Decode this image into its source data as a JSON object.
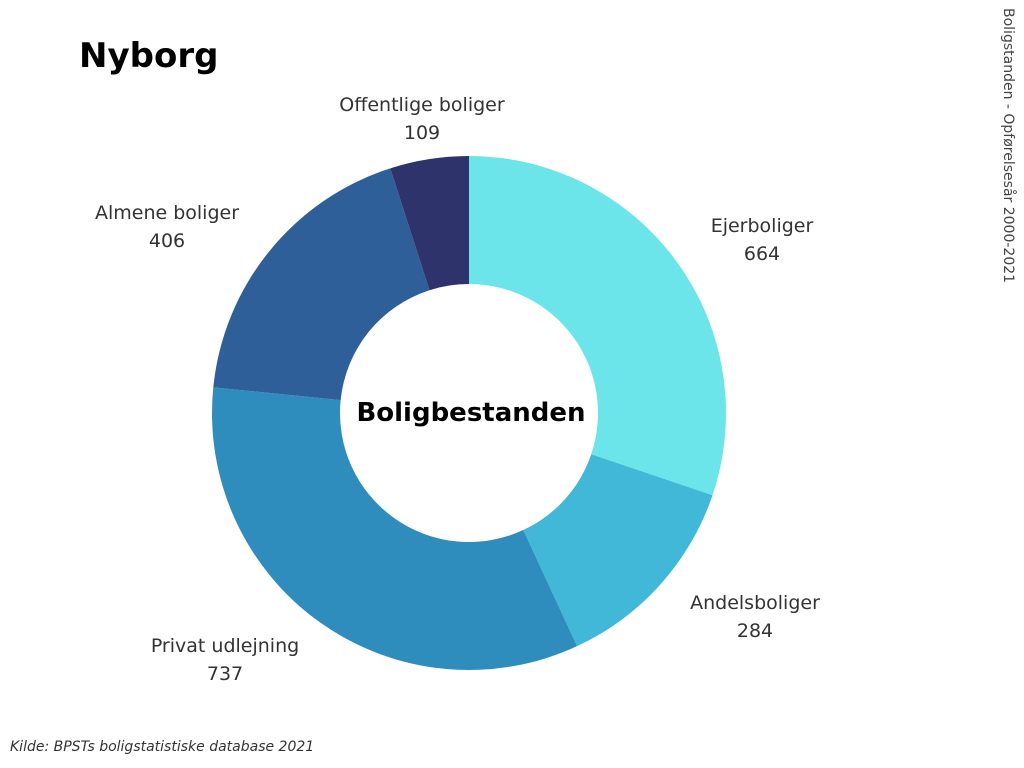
{
  "page": {
    "title": "Nyborg",
    "side_text": "Boligstanden - Opførelsesår 2000-2021",
    "source": "Kilde: BPSTs boligstatistiske database 2021"
  },
  "chart_data": {
    "type": "pie",
    "center_label": "Boligbestanden",
    "categories": [
      "Ejerboliger",
      "Andelsboliger",
      "Privat udlejning",
      "Almene boliger",
      "Offentlige boliger"
    ],
    "values": [
      664,
      284,
      737,
      406,
      109
    ],
    "colors": [
      "#6be5e9",
      "#42b8d8",
      "#2f8dbd",
      "#2e5f98",
      "#2e346b"
    ],
    "start": "12 o'clock",
    "direction": "clockwise",
    "donut": true
  }
}
